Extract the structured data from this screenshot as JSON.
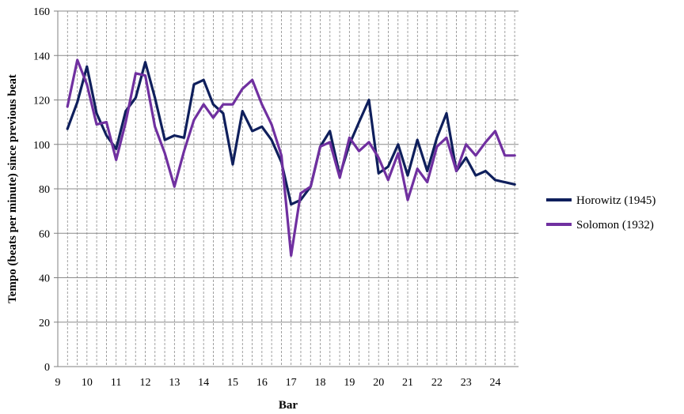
{
  "chart_data": {
    "type": "line",
    "xlabel": "Bar",
    "ylabel": "Tempo (beats per minute) since previous beat",
    "xlim": [
      9,
      24.8
    ],
    "ylim": [
      0,
      160
    ],
    "yticks": [
      0,
      20,
      40,
      60,
      80,
      100,
      120,
      140,
      160
    ],
    "xticks": [
      9,
      10,
      11,
      12,
      13,
      14,
      15,
      16,
      17,
      18,
      19,
      20,
      21,
      22,
      23,
      24
    ],
    "grid": "on",
    "legend_position": "right",
    "series": [
      {
        "name": "Horowitz (1945)",
        "color": "#0f1f5c",
        "x": [
          9.33,
          9.67,
          10,
          10.33,
          10.67,
          11,
          11.33,
          11.67,
          12,
          12.33,
          12.67,
          13,
          13.33,
          13.67,
          14,
          14.33,
          14.67,
          15,
          15.33,
          15.67,
          16,
          16.33,
          16.67,
          17,
          17.33,
          17.67,
          18,
          18.33,
          18.67,
          19,
          19.33,
          19.67,
          20,
          20.33,
          20.67,
          21,
          21.33,
          21.67,
          22,
          22.33,
          22.67,
          23,
          23.33,
          23.67,
          24,
          24.33,
          24.67
        ],
        "y": [
          107,
          119,
          135,
          114,
          104,
          98,
          115,
          121,
          137,
          121,
          102,
          104,
          103,
          127,
          129,
          118,
          114,
          91,
          115,
          106,
          108,
          102,
          92,
          73,
          75,
          81,
          99,
          106,
          86,
          100,
          110,
          120,
          87,
          90,
          100,
          86,
          102,
          88,
          103,
          114,
          88,
          94,
          86,
          88,
          84,
          83,
          82
        ]
      },
      {
        "name": "Solomon (1932)",
        "color": "#7030a0",
        "x": [
          9.33,
          9.67,
          10,
          10.33,
          10.67,
          11,
          11.33,
          11.67,
          12,
          12.33,
          12.67,
          13,
          13.33,
          13.67,
          14,
          14.33,
          14.67,
          15,
          15.33,
          15.67,
          16,
          16.33,
          16.67,
          17,
          17.33,
          17.67,
          18,
          18.33,
          18.67,
          19,
          19.33,
          19.67,
          20,
          20.33,
          20.67,
          21,
          21.33,
          21.67,
          22,
          22.33,
          22.67,
          23,
          23.33,
          23.67,
          24,
          24.33,
          24.67
        ],
        "y": [
          117,
          138,
          127,
          109,
          110,
          93,
          110,
          132,
          131,
          108,
          96,
          81,
          97,
          111,
          118,
          112,
          118,
          118,
          125,
          129,
          118,
          109,
          95,
          50,
          78,
          81,
          99,
          101,
          85,
          103,
          97,
          101,
          94,
          84,
          96,
          75,
          89,
          83,
          99,
          103,
          88,
          100,
          95,
          101,
          106,
          95,
          95
        ]
      }
    ]
  }
}
